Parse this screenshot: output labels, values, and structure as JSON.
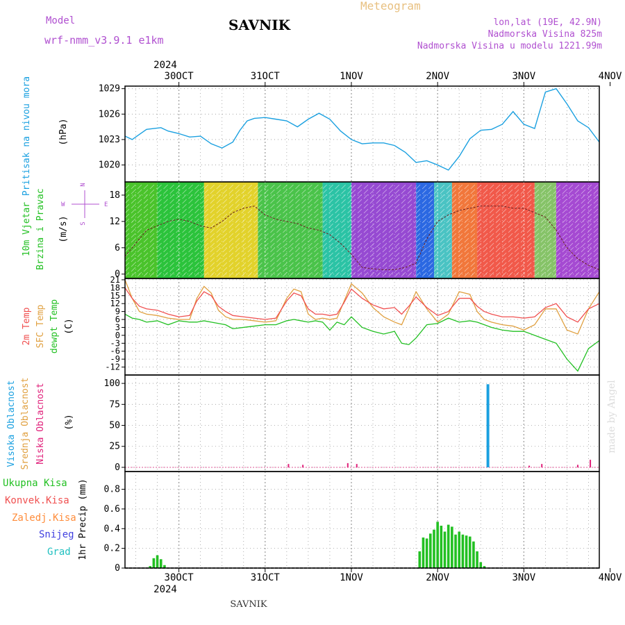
{
  "header": {
    "model_label": "Model",
    "model_name": "wrf-nmm_v3.9.1  e1km",
    "station": "SAVNIK",
    "product": "Meteogram",
    "coords": "lon,lat (19E, 42.9N)",
    "elevation": "Nadmorska Visina 825m",
    "model_elevation": "Nadmorska Visina u modelu 1221.99m"
  },
  "footer": {
    "station": "SAVNIK",
    "watermark": "made by Angel"
  },
  "time_axis": {
    "year": "2024",
    "labels": [
      "30OCT",
      "31OCT",
      "1NOV",
      "2NOV",
      "3NOV",
      "4NOV"
    ],
    "hours_start": -15.0,
    "hours_end": 117.0
  },
  "colors": {
    "pressure": "#1aa0e0",
    "temp": "#f05050",
    "sfc_temp": "#e0a040",
    "dewpt": "#22c022",
    "cloud_high": "#1aa0e0",
    "cloud_mid": "#e0a040",
    "cloud_low": "#e0207a",
    "precip_total": "#22c022",
    "precip_conv": "#f05050",
    "precip_frozen": "#ff8c3a",
    "snow": "#4040e0",
    "hail": "#20c0c0",
    "model": "#b050d0",
    "header_gold": "#e8c080"
  },
  "chart_data": [
    {
      "type": "line",
      "title": "Pritisak na nivou mora",
      "ylabel": "(hPa)",
      "ylim": [
        1018.0,
        1029.3
      ],
      "yticks": [
        1020,
        1023,
        1026,
        1029
      ],
      "series": [
        {
          "name": "Pritisak na nivou mora",
          "x": [
            -15,
            -13,
            -11,
            -9,
            -7,
            -5,
            -3,
            0,
            3,
            6,
            9,
            12,
            15,
            17,
            19,
            21,
            24,
            27,
            30,
            33,
            36,
            39,
            42,
            45,
            48,
            51,
            54,
            57,
            60,
            63,
            66,
            69,
            72,
            75,
            78,
            81,
            84,
            87,
            90,
            93,
            96,
            99,
            102,
            105,
            108,
            111,
            114,
            117
          ],
          "values": [
            1023.4,
            1023.0,
            1023.6,
            1024.2,
            1024.3,
            1024.4,
            1024.0,
            1023.7,
            1023.3,
            1023.4,
            1022.5,
            1022.0,
            1022.7,
            1024.1,
            1025.2,
            1025.5,
            1025.6,
            1025.4,
            1025.2,
            1024.5,
            1025.4,
            1026.1,
            1025.4,
            1024.0,
            1023.0,
            1022.5,
            1022.6,
            1022.6,
            1022.3,
            1021.5,
            1020.3,
            1020.5,
            1020.0,
            1019.4,
            1021.0,
            1023.1,
            1024.1,
            1024.2,
            1024.8,
            1026.3,
            1024.8,
            1024.3,
            1028.6,
            1029.0,
            1027.2,
            1025.2,
            1024.4,
            1022.7
          ]
        }
      ]
    },
    {
      "type": "line",
      "title": "10m Vjetar Brzina i Pravac",
      "ylabel": "(m/s)",
      "ylim": [
        -1,
        21
      ],
      "yticks": [
        0,
        6,
        12,
        18
      ],
      "compass": {
        "n": "N",
        "s": "S",
        "w": "W",
        "e": "E"
      },
      "series": [
        {
          "name": "Brzina",
          "x": [
            -15,
            -12,
            -9,
            -6,
            -3,
            0,
            3,
            6,
            9,
            12,
            15,
            18,
            21,
            24,
            27,
            30,
            33,
            36,
            39,
            42,
            45,
            48,
            51,
            54,
            57,
            60,
            63,
            66,
            69,
            72,
            75,
            78,
            81,
            84,
            87,
            90,
            93,
            96,
            99,
            102,
            105,
            108,
            111,
            114,
            117
          ],
          "values": [
            4.0,
            7.0,
            10.0,
            11.0,
            12.0,
            12.5,
            12.0,
            11.0,
            10.5,
            12.0,
            14.0,
            15.0,
            15.5,
            13.5,
            12.5,
            12.0,
            11.5,
            10.5,
            10.0,
            9.0,
            7.0,
            4.5,
            1.5,
            1.2,
            1.0,
            1.0,
            1.5,
            2.5,
            8.0,
            12.0,
            13.5,
            14.5,
            15.0,
            15.5,
            15.5,
            15.5,
            15.0,
            15.0,
            14.0,
            13.0,
            10.0,
            6.0,
            3.5,
            2.0,
            1.0
          ]
        }
      ],
      "bands": [
        {
          "from": -15,
          "to": -6,
          "color": "#40c020"
        },
        {
          "from": -6,
          "to": 7,
          "color": "#20c030"
        },
        {
          "from": 7,
          "to": 22,
          "color": "#e0d020"
        },
        {
          "from": 22,
          "to": 40,
          "color": "#40c040"
        },
        {
          "from": 40,
          "to": 48,
          "color": "#20c0a0"
        },
        {
          "from": 48,
          "to": 66,
          "color": "#9040d0"
        },
        {
          "from": 66,
          "to": 71,
          "color": "#2060e0"
        },
        {
          "from": 71,
          "to": 76,
          "color": "#40c0c0"
        },
        {
          "from": 76,
          "to": 83,
          "color": "#f07030"
        },
        {
          "from": 83,
          "to": 99,
          "color": "#f05040"
        },
        {
          "from": 99,
          "to": 105,
          "color": "#80c060"
        },
        {
          "from": 105,
          "to": 117,
          "color": "#a040d0"
        }
      ]
    },
    {
      "type": "line",
      "ylabel": "(C)",
      "ylim": [
        -15,
        21.5
      ],
      "yticks": [
        -12,
        -9,
        -6,
        -3,
        0,
        3,
        6,
        9,
        12,
        15,
        18,
        21
      ],
      "ytick_labels": [
        "-12",
        "-9",
        "-6",
        "-3",
        "0",
        "3",
        "6",
        "9",
        "12",
        "15",
        "18",
        "21"
      ],
      "series": [
        {
          "name": "2m Temp",
          "x": [
            -15,
            -13,
            -11,
            -9,
            -6,
            -3,
            0,
            3,
            5,
            7,
            9,
            11,
            13,
            15,
            18,
            21,
            24,
            27,
            30,
            32,
            34,
            36,
            38,
            40,
            42,
            44,
            46,
            48,
            51,
            54,
            57,
            60,
            62,
            64,
            66,
            69,
            72,
            75,
            78,
            81,
            83,
            85,
            87,
            90,
            93,
            96,
            99,
            102,
            105,
            108,
            111,
            114,
            117
          ],
          "values": [
            18.0,
            14.0,
            11.0,
            10.0,
            9.5,
            8.0,
            7.0,
            7.5,
            13.0,
            16.5,
            15.0,
            11.0,
            9.0,
            7.5,
            7.0,
            6.5,
            6.0,
            6.5,
            13.0,
            16.0,
            15.0,
            10.0,
            8.0,
            8.0,
            7.5,
            8.0,
            12.5,
            17.5,
            14.0,
            11.5,
            10.0,
            10.5,
            8.0,
            11.0,
            14.5,
            10.5,
            7.5,
            9.0,
            14.0,
            14.0,
            11.0,
            9.0,
            8.0,
            7.0,
            7.0,
            6.5,
            7.0,
            10.5,
            12.0,
            7.0,
            5.0,
            10.0,
            12.0
          ]
        },
        {
          "name": "SFC Temp",
          "x": [
            -15,
            -13,
            -11,
            -9,
            -6,
            -3,
            0,
            3,
            5,
            7,
            9,
            11,
            13,
            15,
            18,
            21,
            24,
            27,
            30,
            32,
            34,
            36,
            38,
            40,
            42,
            44,
            46,
            48,
            51,
            54,
            57,
            60,
            62,
            64,
            66,
            69,
            72,
            75,
            78,
            81,
            83,
            85,
            87,
            90,
            93,
            96,
            99,
            102,
            105,
            108,
            111,
            114,
            117
          ],
          "values": [
            21.0,
            14.0,
            9.0,
            8.0,
            7.5,
            6.5,
            6.0,
            6.0,
            14.0,
            18.5,
            16.0,
            9.5,
            7.0,
            6.0,
            6.0,
            5.5,
            5.0,
            5.5,
            14.0,
            17.5,
            16.5,
            8.0,
            6.0,
            6.5,
            6.0,
            6.5,
            13.0,
            19.5,
            16.0,
            10.5,
            7.0,
            5.0,
            4.0,
            10.0,
            16.5,
            10.0,
            5.0,
            8.0,
            16.5,
            15.5,
            9.0,
            6.0,
            5.0,
            4.0,
            3.5,
            2.0,
            4.0,
            10.0,
            10.0,
            2.0,
            0.5,
            10.0,
            16.5
          ]
        },
        {
          "name": "dewpt Temp",
          "x": [
            -15,
            -13,
            -11,
            -9,
            -6,
            -3,
            0,
            3,
            5,
            7,
            9,
            11,
            13,
            15,
            18,
            21,
            24,
            27,
            30,
            32,
            34,
            36,
            38,
            40,
            42,
            44,
            46,
            48,
            51,
            54,
            57,
            60,
            62,
            64,
            66,
            69,
            72,
            75,
            78,
            81,
            83,
            85,
            87,
            90,
            93,
            96,
            99,
            102,
            105,
            108,
            111,
            114,
            117
          ],
          "values": [
            8.0,
            6.5,
            6.0,
            5.0,
            5.5,
            4.0,
            5.5,
            5.0,
            5.0,
            5.5,
            5.0,
            4.5,
            4.0,
            2.5,
            3.0,
            3.5,
            4.0,
            4.0,
            5.5,
            6.0,
            5.5,
            5.0,
            5.5,
            5.0,
            2.0,
            5.0,
            4.0,
            7.0,
            3.0,
            1.5,
            0.5,
            1.5,
            -3.0,
            -3.5,
            -1.0,
            4.0,
            4.5,
            6.5,
            5.0,
            5.5,
            5.0,
            4.0,
            3.0,
            2.0,
            1.5,
            1.5,
            0.0,
            -1.5,
            -3.0,
            -9.0,
            -13.5,
            -5.0,
            -2.0
          ]
        }
      ]
    },
    {
      "type": "bar",
      "ylabel": "(%)",
      "ylim": [
        -5,
        110
      ],
      "yticks": [
        0,
        25,
        50,
        75,
        100
      ],
      "series": [
        {
          "name": "Visoka Oblacnost",
          "x": [
            86.0
          ],
          "values": [
            99
          ]
        },
        {
          "name": "Srednja Oblacnost",
          "x": [],
          "values": []
        },
        {
          "name": "Niska Oblacnost",
          "x": [
            30.5,
            34.5,
            47.0,
            49.5,
            97.5,
            101.0,
            111.0,
            114.5
          ],
          "values": [
            4,
            3,
            5,
            4,
            2,
            4,
            3,
            9
          ]
        }
      ]
    },
    {
      "type": "bar",
      "ylabel": "1hr Precip (mm)",
      "ylim": [
        0,
        0.98
      ],
      "yticks": [
        0.0,
        0.2,
        0.4,
        0.6,
        0.8
      ],
      "ytick_labels": [
        "0",
        "0.2",
        "0.4",
        "0.6",
        "0.8"
      ],
      "series": [
        {
          "name": "Ukupna Kisa",
          "x": [
            -8,
            -7,
            -6,
            -5,
            -4,
            67,
            68,
            69,
            70,
            71,
            72,
            73,
            74,
            75,
            76,
            77,
            78,
            79,
            80,
            81,
            82,
            83,
            84,
            85
          ],
          "values": [
            0.02,
            0.1,
            0.13,
            0.09,
            0.03,
            0.17,
            0.31,
            0.3,
            0.35,
            0.39,
            0.47,
            0.43,
            0.37,
            0.44,
            0.42,
            0.34,
            0.37,
            0.34,
            0.33,
            0.32,
            0.27,
            0.17,
            0.06,
            0.02
          ]
        },
        {
          "name": "Konvek.Kisa",
          "x": [],
          "values": []
        },
        {
          "name": "Zaledj.Kisa",
          "x": [],
          "values": []
        },
        {
          "name": "Snijeg",
          "x": [],
          "values": []
        },
        {
          "name": "Grad",
          "x": [],
          "values": []
        }
      ]
    }
  ]
}
